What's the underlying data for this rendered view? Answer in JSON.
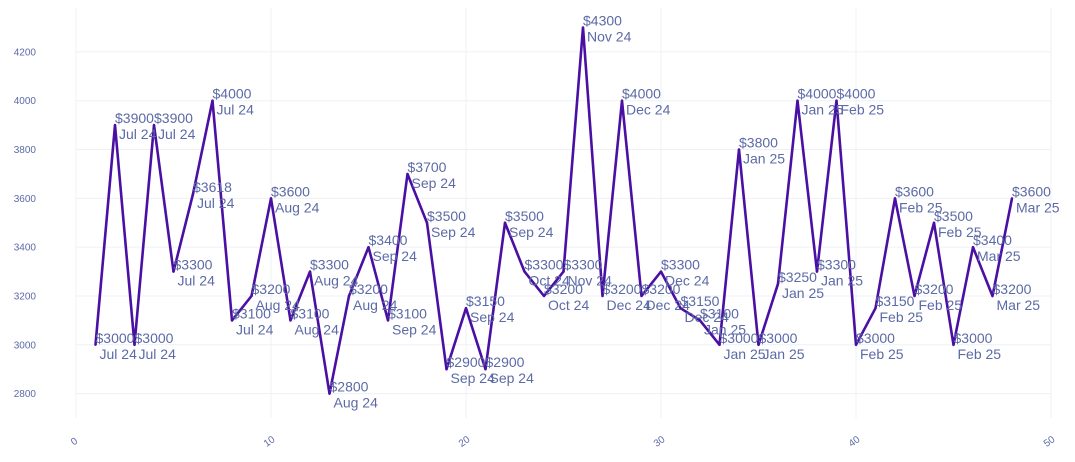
{
  "chart_data": {
    "type": "line",
    "title": "",
    "xlabel": "",
    "ylabel": "",
    "xlim": [
      0,
      50
    ],
    "ylim": [
      2700,
      4380
    ],
    "x_ticks": [
      0,
      10,
      20,
      30,
      40,
      50
    ],
    "y_ticks": [
      2800,
      3000,
      3200,
      3400,
      3600,
      3800,
      4000,
      4200
    ],
    "grid": true,
    "line_color": "#4a0fa3",
    "text_color": "#5c6aa6",
    "points": [
      {
        "x": 1,
        "y": 3000,
        "value_label": "$3000",
        "period_label": "Jul 24"
      },
      {
        "x": 2,
        "y": 3900,
        "value_label": "$3900",
        "period_label": "Jul 24"
      },
      {
        "x": 3,
        "y": 3000,
        "value_label": "$3000",
        "period_label": "Jul 24"
      },
      {
        "x": 4,
        "y": 3900,
        "value_label": "$3900",
        "period_label": "Jul 24"
      },
      {
        "x": 5,
        "y": 3300,
        "value_label": "$3300",
        "period_label": "Jul 24"
      },
      {
        "x": 6,
        "y": 3618,
        "value_label": "$3618",
        "period_label": "Jul 24"
      },
      {
        "x": 7,
        "y": 4000,
        "value_label": "$4000",
        "period_label": "Jul 24"
      },
      {
        "x": 8,
        "y": 3100,
        "value_label": "$3100",
        "period_label": "Jul 24"
      },
      {
        "x": 9,
        "y": 3200,
        "value_label": "$3200",
        "period_label": "Aug 24"
      },
      {
        "x": 10,
        "y": 3600,
        "value_label": "$3600",
        "period_label": "Aug 24"
      },
      {
        "x": 11,
        "y": 3100,
        "value_label": "$3100",
        "period_label": "Aug 24"
      },
      {
        "x": 12,
        "y": 3300,
        "value_label": "$3300",
        "period_label": "Aug 24"
      },
      {
        "x": 13,
        "y": 2800,
        "value_label": "$2800",
        "period_label": "Aug 24"
      },
      {
        "x": 14,
        "y": 3200,
        "value_label": "$3200",
        "period_label": "Aug 24"
      },
      {
        "x": 15,
        "y": 3400,
        "value_label": "$3400",
        "period_label": "Sep 24"
      },
      {
        "x": 16,
        "y": 3100,
        "value_label": "$3100",
        "period_label": "Sep 24"
      },
      {
        "x": 17,
        "y": 3700,
        "value_label": "$3700",
        "period_label": "Sep 24"
      },
      {
        "x": 18,
        "y": 3500,
        "value_label": "$3500",
        "period_label": "Sep 24"
      },
      {
        "x": 19,
        "y": 2900,
        "value_label": "$2900",
        "period_label": "Sep 24"
      },
      {
        "x": 20,
        "y": 3150,
        "value_label": "$3150",
        "period_label": "Sep 24"
      },
      {
        "x": 21,
        "y": 2900,
        "value_label": "$2900",
        "period_label": "Sep 24"
      },
      {
        "x": 22,
        "y": 3500,
        "value_label": "$3500",
        "period_label": "Sep 24"
      },
      {
        "x": 23,
        "y": 3300,
        "value_label": "$3300",
        "period_label": "Oct 24"
      },
      {
        "x": 24,
        "y": 3200,
        "value_label": "$3200",
        "period_label": "Oct 24"
      },
      {
        "x": 25,
        "y": 3300,
        "value_label": "$3300",
        "period_label": "Nov 24"
      },
      {
        "x": 26,
        "y": 4300,
        "value_label": "$4300",
        "period_label": "Nov 24"
      },
      {
        "x": 27,
        "y": 3200,
        "value_label": "$3200",
        "period_label": "Dec 24"
      },
      {
        "x": 28,
        "y": 4000,
        "value_label": "$4000",
        "period_label": "Dec 24"
      },
      {
        "x": 29,
        "y": 3200,
        "value_label": "$3200",
        "period_label": "Dec 24"
      },
      {
        "x": 30,
        "y": 3300,
        "value_label": "$3300",
        "period_label": "Dec 24"
      },
      {
        "x": 31,
        "y": 3150,
        "value_label": "$3150",
        "period_label": "Dec 24"
      },
      {
        "x": 32,
        "y": 3100,
        "value_label": "$3100",
        "period_label": "Jan 25"
      },
      {
        "x": 33,
        "y": 3000,
        "value_label": "$3000",
        "period_label": "Jan 25"
      },
      {
        "x": 34,
        "y": 3800,
        "value_label": "$3800",
        "period_label": "Jan 25"
      },
      {
        "x": 35,
        "y": 3000,
        "value_label": "$3000",
        "period_label": "Jan 25"
      },
      {
        "x": 36,
        "y": 3250,
        "value_label": "$3250",
        "period_label": "Jan 25"
      },
      {
        "x": 37,
        "y": 4000,
        "value_label": "$4000",
        "period_label": "Jan 25"
      },
      {
        "x": 38,
        "y": 3300,
        "value_label": "$3300",
        "period_label": "Jan 25"
      },
      {
        "x": 39,
        "y": 4000,
        "value_label": "$4000",
        "period_label": "Feb 25"
      },
      {
        "x": 40,
        "y": 3000,
        "value_label": "$3000",
        "period_label": "Feb 25"
      },
      {
        "x": 41,
        "y": 3150,
        "value_label": "$3150",
        "period_label": "Feb 25"
      },
      {
        "x": 42,
        "y": 3600,
        "value_label": "$3600",
        "period_label": "Feb 25"
      },
      {
        "x": 43,
        "y": 3200,
        "value_label": "$3200",
        "period_label": "Feb 25"
      },
      {
        "x": 44,
        "y": 3500,
        "value_label": "$3500",
        "period_label": "Feb 25"
      },
      {
        "x": 45,
        "y": 3000,
        "value_label": "$3000",
        "period_label": "Feb 25"
      },
      {
        "x": 46,
        "y": 3400,
        "value_label": "$3400",
        "period_label": "Mar 25"
      },
      {
        "x": 47,
        "y": 3200,
        "value_label": "$3200",
        "period_label": "Mar 25"
      },
      {
        "x": 48,
        "y": 3600,
        "value_label": "$3600",
        "period_label": "Mar 25"
      }
    ]
  }
}
